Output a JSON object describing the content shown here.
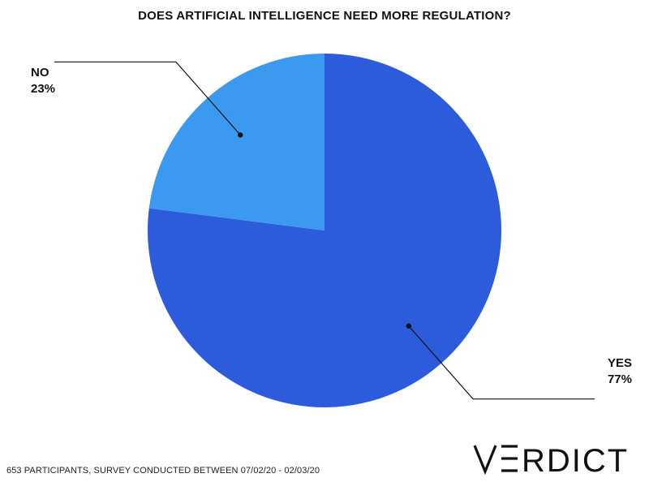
{
  "title": "DOES ARTIFICIAL INTELLIGENCE NEED MORE REGULATION?",
  "footer": "653 PARTICIPANTS, SURVEY CONDUCTED BETWEEN 07/02/20 - 02/03/20",
  "logo_text": "VERDICT",
  "chart_data": {
    "type": "pie",
    "title": "DOES ARTIFICIAL INTELLIGENCE NEED MORE REGULATION?",
    "slices": [
      {
        "label": "YES",
        "value": 77,
        "value_label": "77%",
        "color": "#2c5bdc"
      },
      {
        "label": "NO",
        "value": 23,
        "value_label": "23%",
        "color": "#3b99ef"
      }
    ],
    "start_angle": "12 o'clock",
    "direction": "clockwise"
  }
}
